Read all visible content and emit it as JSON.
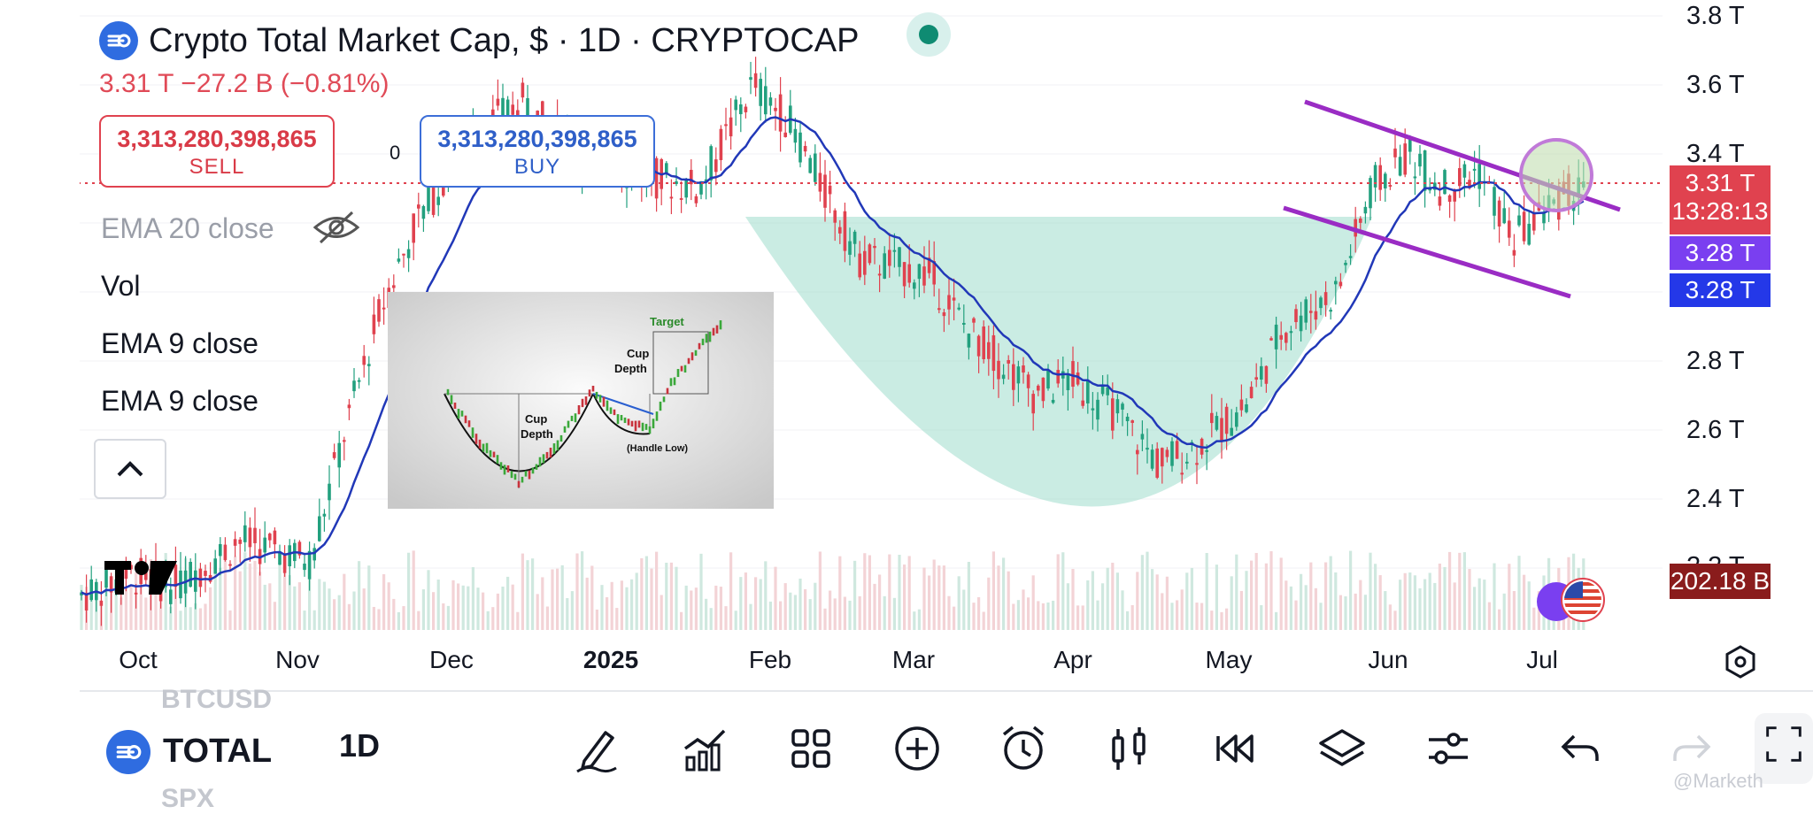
{
  "header": {
    "title": "Crypto Total Market Cap, $ · 1D · CRYPTOCAP",
    "price_line": "3.31 T  −27.2 B (−0.81%)"
  },
  "trade": {
    "sell_price": "3,313,280,398,865",
    "sell_label": "SELL",
    "buy_price": "3,313,280,398,865",
    "buy_label": "BUY",
    "spread": "0"
  },
  "indicators": [
    {
      "label": "EMA 20 close"
    },
    {
      "label": "Vol"
    },
    {
      "label": "EMA 9 close"
    },
    {
      "label": "EMA 9 close"
    }
  ],
  "yaxis": {
    "ticks": [
      "3.8 T",
      "3.6 T",
      "3.4 T",
      "2.8 T",
      "2.6 T",
      "2.4 T",
      "2.2 T"
    ]
  },
  "price_tags": {
    "last_price": "3.31 T",
    "countdown": "13:28:13",
    "ema_a": "3.28 T",
    "ema_b": "3.28 T",
    "volume": "202.18 B"
  },
  "xaxis": {
    "labels": [
      "Oct",
      "Nov",
      "Dec",
      "2025",
      "Feb",
      "Mar",
      "Apr",
      "May",
      "Jun",
      "Jul"
    ]
  },
  "inset": {
    "target": "Target",
    "cup_depth_a": "Cup Depth",
    "cup_depth_b": "Cup Depth",
    "handle_low": "(Handle Low)"
  },
  "toolbar": {
    "symbol": "TOTAL",
    "timeframe": "1D",
    "ghost_above": "BTCUSD",
    "ghost_below": "SPX",
    "watermark": "@Marketh"
  },
  "colors": {
    "up": "#22a07e",
    "down": "#e0424f",
    "ema": "#2138b8",
    "channel": "#9a2cc4",
    "cup_fill": "#9fdccc",
    "accent": "#2f6ce0"
  },
  "chart_data": {
    "type": "candlestick",
    "unit": "T",
    "x": [
      "Oct",
      "Nov",
      "Dec",
      "2025",
      "Feb",
      "Mar",
      "Apr",
      "May",
      "Jun",
      "Jul"
    ],
    "close": [
      2.18,
      2.22,
      3.2,
      3.28,
      3.55,
      2.75,
      2.55,
      3.0,
      3.32,
      3.31
    ],
    "last": 3.31,
    "ylim": [
      2.2,
      3.8
    ]
  }
}
